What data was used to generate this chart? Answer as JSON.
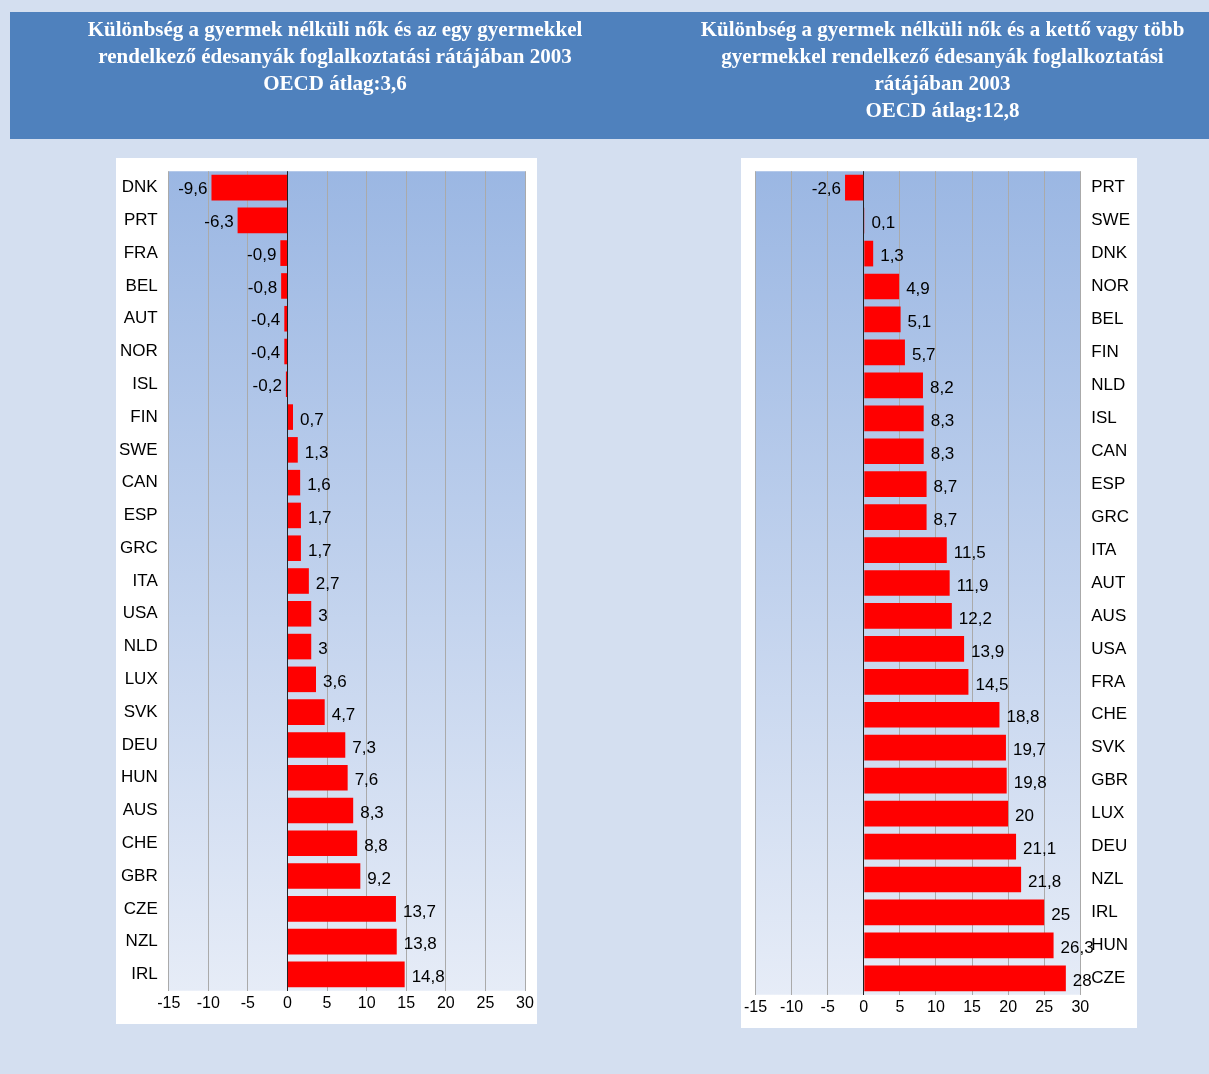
{
  "chart_data": [
    {
      "type": "bar",
      "orientation": "horizontal",
      "title": "Különbség a gyermek nélküli nők és az egy gyermekkel rendelkező édesanyák foglalkoztatási rátájában 2003",
      "subtitle": "OECD átlag:3,6",
      "categories": [
        "DNK",
        "PRT",
        "FRA",
        "BEL",
        "AUT",
        "NOR",
        "ISL",
        "FIN",
        "SWE",
        "CAN",
        "ESP",
        "GRC",
        "ITA",
        "USA",
        "NLD",
        "LUX",
        "SVK",
        "DEU",
        "HUN",
        "AUS",
        "CHE",
        "GBR",
        "CZE",
        "NZL",
        "IRL"
      ],
      "values": [
        -9.6,
        -6.3,
        -0.9,
        -0.8,
        -0.4,
        -0.4,
        -0.2,
        0.7,
        1.3,
        1.6,
        1.7,
        1.7,
        2.7,
        3,
        3,
        3.6,
        4.7,
        7.3,
        7.6,
        8.3,
        8.8,
        9.2,
        13.7,
        13.8,
        14.8
      ],
      "value_labels": [
        "-9,6",
        "-6,3",
        "-0,9",
        "-0,8",
        "-0,4",
        "-0,4",
        "-0,2",
        "0,7",
        "1,3",
        "1,6",
        "1,7",
        "1,7",
        "2,7",
        "3",
        "3",
        "3,6",
        "4,7",
        "7,3",
        "7,6",
        "8,3",
        "8,8",
        "9,2",
        "13,7",
        "13,8",
        "14,8"
      ],
      "color": "#ff0000",
      "xlim": [
        -15,
        30
      ],
      "xticks": [
        -15,
        -10,
        -5,
        0,
        5,
        10,
        15,
        20,
        25,
        30
      ],
      "grid": "x"
    },
    {
      "type": "bar",
      "orientation": "horizontal",
      "title": "Különbség a gyermek nélküli nők és a kettő vagy több gyermekkel rendelkező édesanyák foglalkoztatási rátájában 2003",
      "subtitle": "OECD átlag:12,8",
      "categories": [
        "PRT",
        "SWE",
        "DNK",
        "NOR",
        "BEL",
        "FIN",
        "NLD",
        "ISL",
        "CAN",
        "ESP",
        "GRC",
        "ITA",
        "AUT",
        "AUS",
        "USA",
        "FRA",
        "CHE",
        "SVK",
        "GBR",
        "LUX",
        "DEU",
        "NZL",
        "IRL",
        "HUN",
        "CZE"
      ],
      "values": [
        -2.6,
        0.1,
        1.3,
        4.9,
        5.1,
        5.7,
        8.2,
        8.3,
        8.3,
        8.7,
        8.7,
        11.5,
        11.9,
        12.2,
        13.9,
        14.5,
        18.8,
        19.7,
        19.8,
        20,
        21.1,
        21.8,
        25,
        26.3,
        28
      ],
      "value_labels": [
        "-2,6",
        "0,1",
        "1,3",
        "4,9",
        "5,1",
        "5,7",
        "8,2",
        "8,3",
        "8,3",
        "8,7",
        "8,7",
        "11,5",
        "11,9",
        "12,2",
        "13,9",
        "14,5",
        "18,8",
        "19,7",
        "19,8",
        "20",
        "21,1",
        "21,8",
        "25",
        "26,3",
        "28"
      ],
      "color": "#ff0000",
      "xlim": [
        -15,
        30
      ],
      "xticks": [
        -15,
        -10,
        -5,
        0,
        5,
        10,
        15,
        20,
        25,
        30
      ],
      "grid": "x"
    }
  ]
}
